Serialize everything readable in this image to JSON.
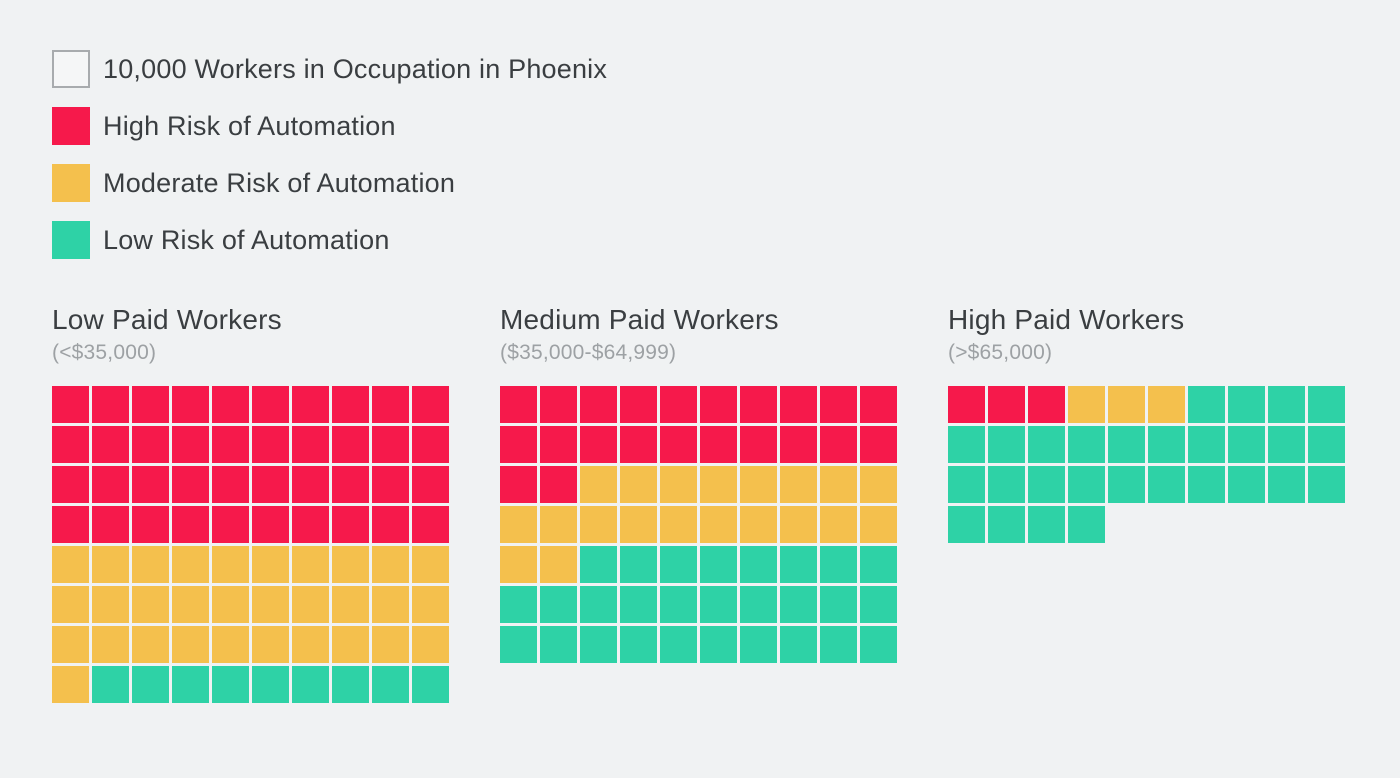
{
  "page": {
    "background": "#F0F2F3",
    "text_color": "#3A3E41",
    "muted_text_color": "#9DA1A4"
  },
  "legend": {
    "unit_label": "10,000 Workers in Occupation in Phoenix",
    "items": [
      {
        "key": "high",
        "label": "High Risk of Automation",
        "color": "#F6194B"
      },
      {
        "key": "moderate",
        "label": "Moderate Risk of Automation",
        "color": "#F4C04D"
      },
      {
        "key": "low",
        "label": "Low Risk of Automation",
        "color": "#2ED2A6"
      }
    ]
  },
  "chart_data": {
    "type": "waffle",
    "square_unit": {
      "workers_per_square": 10000,
      "label": "10,000 Workers in Occupation in Phoenix"
    },
    "columns": 10,
    "fill_order": [
      "high",
      "moderate",
      "low"
    ],
    "legend": [
      "High Risk of Automation",
      "Moderate Risk of Automation",
      "Low Risk of Automation"
    ],
    "colors": {
      "high": "#F6194B",
      "moderate": "#F4C04D",
      "low": "#2ED2A6"
    },
    "groups": [
      {
        "title": "Low Paid Workers",
        "subtitle": "(<$35,000)",
        "squares": {
          "high": 40,
          "moderate": 31,
          "low": 9
        },
        "total_squares": 80,
        "workers": {
          "high": 400000,
          "moderate": 310000,
          "low": 90000,
          "total": 800000
        }
      },
      {
        "title": "Medium Paid Workers",
        "subtitle": "($35,000-$64,999)",
        "squares": {
          "high": 22,
          "moderate": 20,
          "low": 28
        },
        "total_squares": 70,
        "workers": {
          "high": 220000,
          "moderate": 200000,
          "low": 280000,
          "total": 700000
        }
      },
      {
        "title": "High Paid Workers",
        "subtitle": "(>$65,000)",
        "squares": {
          "high": 3,
          "moderate": 3,
          "low": 28
        },
        "total_squares": 34,
        "workers": {
          "high": 30000,
          "moderate": 30000,
          "low": 280000,
          "total": 340000
        }
      }
    ]
  }
}
